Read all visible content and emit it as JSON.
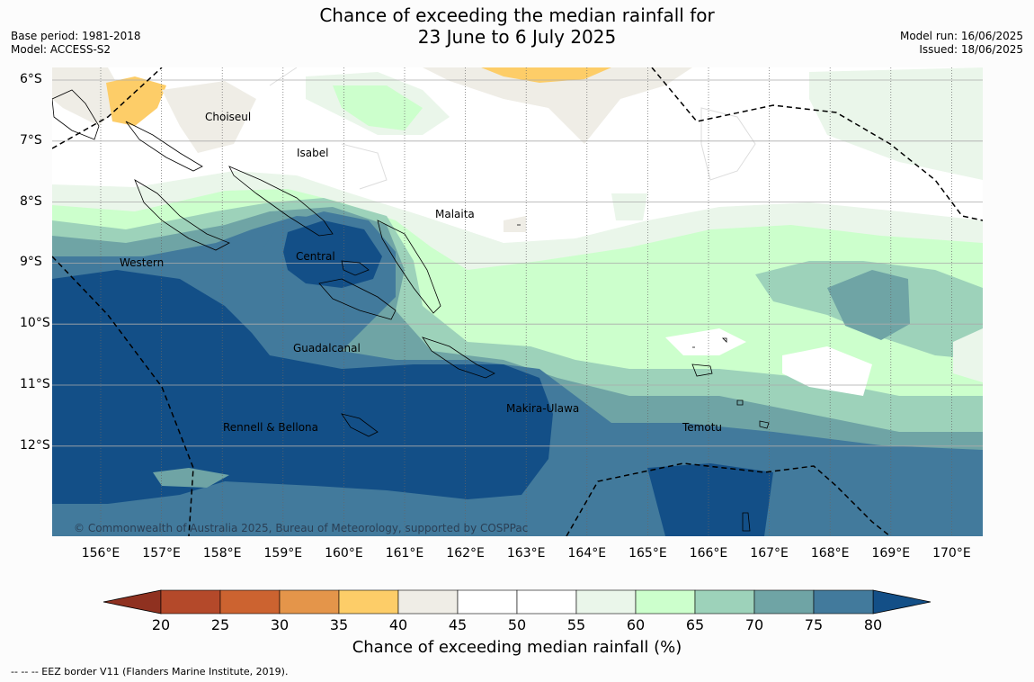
{
  "title": {
    "line1": "Chance of exceeding the median rainfall for",
    "line2": "23 June to 6 July 2025"
  },
  "meta": {
    "base_period": "Base period: 1981-2018",
    "model": "Model: ACCESS-S2",
    "model_run": "Model run: 16/06/2025",
    "issued": "Issued: 18/06/2025"
  },
  "map": {
    "copyright": "© Commonwealth of Australia 2025, Bureau of Meteorology, supported by COSPPac",
    "lon_labels": [
      "156°E",
      "157°E",
      "158°E",
      "159°E",
      "160°E",
      "161°E",
      "162°E",
      "163°E",
      "164°E",
      "165°E",
      "166°E",
      "167°E",
      "168°E",
      "169°E",
      "170°E"
    ],
    "lat_labels": [
      "6°S",
      "7°S",
      "8°S",
      "9°S",
      "10°S",
      "11°S",
      "12°S"
    ],
    "places": [
      "Choiseul",
      "Isabel",
      "Malaita",
      "Central",
      "Western",
      "Guadalcanal",
      "Makira-Ulawa",
      "Rennell & Bellona",
      "Temotu"
    ]
  },
  "colorbar": {
    "ticks": [
      "20",
      "25",
      "30",
      "35",
      "40",
      "45",
      "50",
      "55",
      "60",
      "65",
      "70",
      "75",
      "80"
    ],
    "colors": [
      "#b4492a",
      "#cc6330",
      "#e4954a",
      "#fdcd68",
      "#efede6",
      "#ffffff",
      "#ffffff",
      "#eaf6ea",
      "#ccffcc",
      "#9dd2ba",
      "#6fa4a5",
      "#427a9c"
    ],
    "low_color": "#8f3120",
    "high_color": "#134f87",
    "title": "Chance of exceeding median rainfall (%)"
  },
  "footnote": "--  --  -- EEZ border V11 (Flanders Marine Institute, 2019)."
}
